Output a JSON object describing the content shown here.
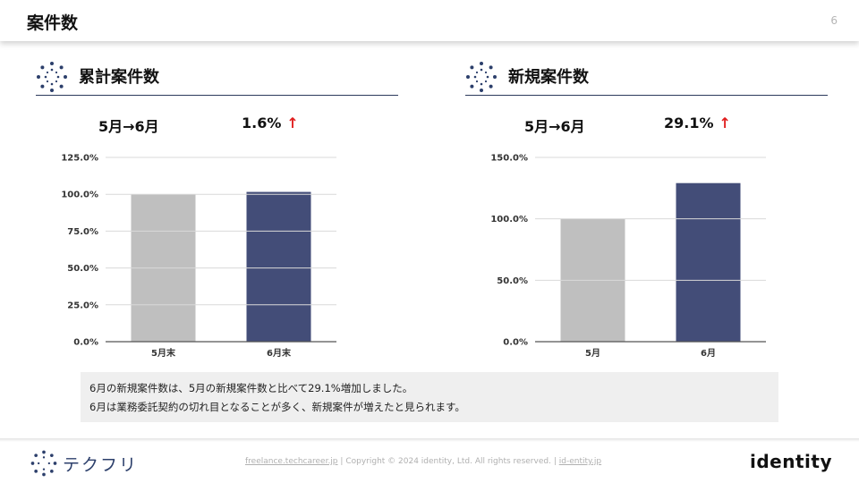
{
  "page": {
    "title": "案件数",
    "number": "6"
  },
  "left": {
    "heading": "累計案件数",
    "period": "5月→6月",
    "change": "1.6%",
    "arrow": "↑",
    "chart_data": {
      "type": "bar",
      "categories": [
        "5月末",
        "6月末"
      ],
      "values": [
        100.0,
        101.6
      ],
      "ylim": [
        0,
        125
      ],
      "yticks": [
        "0.0%",
        "25.0%",
        "50.0%",
        "75.0%",
        "100.0%",
        "125.0%"
      ],
      "tick_values": [
        0,
        25,
        50,
        75,
        100,
        125
      ],
      "colors": [
        "#bfbfbf",
        "#434d78"
      ],
      "grid": true
    }
  },
  "right": {
    "heading": "新規案件数",
    "period": "5月→6月",
    "change": "29.1%",
    "arrow": "↑",
    "chart_data": {
      "type": "bar",
      "categories": [
        "5月",
        "6月"
      ],
      "values": [
        100.0,
        129.1
      ],
      "ylim": [
        0,
        150
      ],
      "yticks": [
        "0.0%",
        "50.0%",
        "100.0%",
        "150.0%"
      ],
      "tick_values": [
        0,
        50,
        100,
        150
      ],
      "colors": [
        "#bfbfbf",
        "#434d78"
      ],
      "grid": true
    }
  },
  "notes": {
    "line1": "6月の新規案件数は、5月の新規案件数と比べて29.1%増加しました。",
    "line2": "6月は業務委託契約の切れ目となることが多く、新規案件が増えたと見られます。"
  },
  "footer": {
    "brand": "テクフリ",
    "link1": "freelance.techcareer.jp",
    "sep": "|",
    "copyright": "Copyright © 2024 identity, Ltd. All rights reserved.",
    "link2": "id-entity.jp",
    "logo_text": "identity"
  },
  "accent": "#2c3a5c",
  "arrow_color": "#e01e1e"
}
